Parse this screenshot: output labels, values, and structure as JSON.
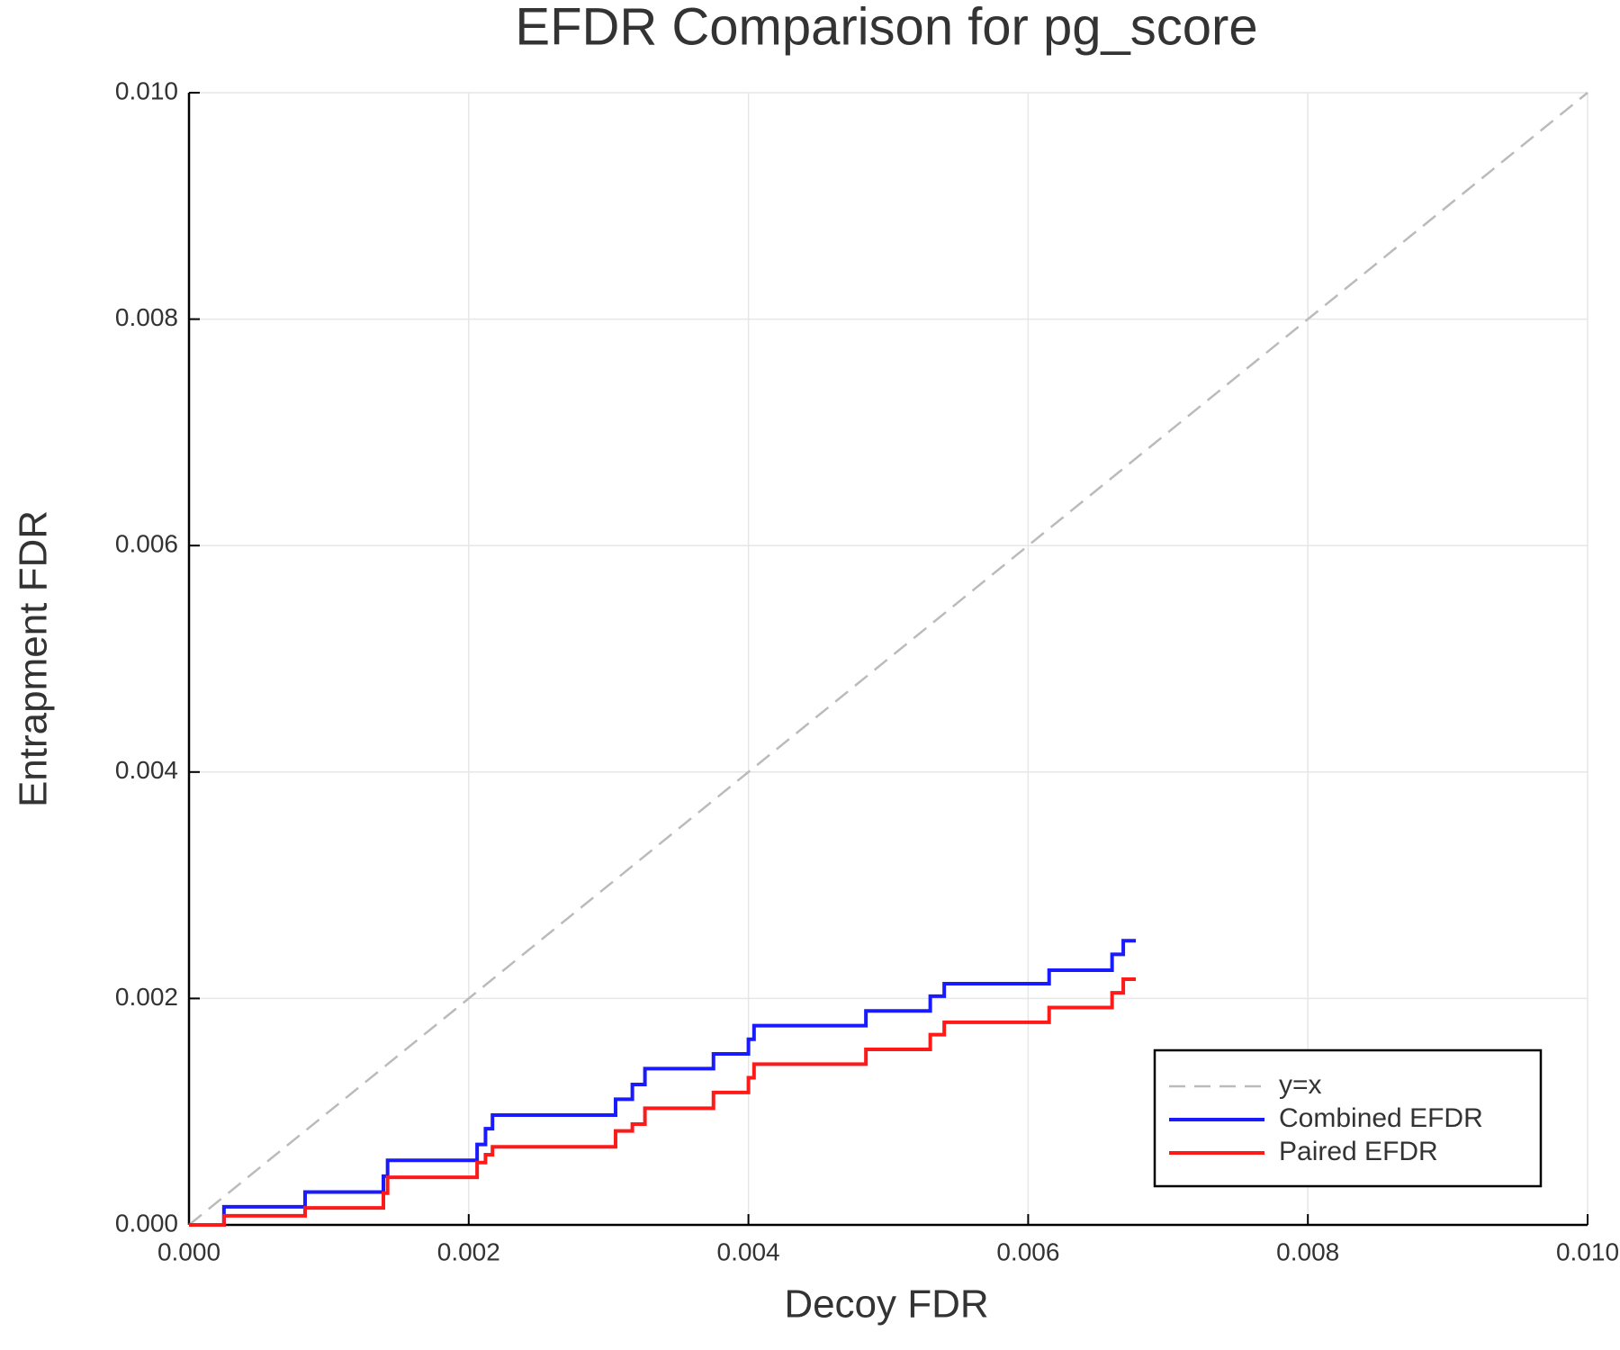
{
  "chart_data": {
    "type": "line",
    "title": "EFDR Comparison for pg_score",
    "x_label": "Decoy FDR",
    "y_label": "Entrapment FDR",
    "xlim": [
      0,
      0.01
    ],
    "ylim": [
      0,
      0.01
    ],
    "xticks": [
      {
        "value": 0,
        "label": "0.000"
      },
      {
        "value": 0.002,
        "label": "0.002"
      },
      {
        "value": 0.004,
        "label": "0.004"
      },
      {
        "value": 0.006,
        "label": "0.006"
      },
      {
        "value": 0.008,
        "label": "0.008"
      },
      {
        "value": 0.01,
        "label": "0.010"
      }
    ],
    "yticks": [
      {
        "value": 0,
        "label": "0.000"
      },
      {
        "value": 0.002,
        "label": "0.002"
      },
      {
        "value": 0.004,
        "label": "0.004"
      },
      {
        "value": 0.006,
        "label": "0.006"
      },
      {
        "value": 0.008,
        "label": "0.008"
      },
      {
        "value": 0.01,
        "label": "0.010"
      }
    ],
    "grid": true,
    "legend": "bottom-right",
    "series": [
      {
        "name": "y=x",
        "color": "#bbbbbb",
        "dash": true,
        "x": [
          0,
          0.01
        ],
        "values": [
          0,
          0.01
        ]
      },
      {
        "name": "Combined EFDR",
        "color": "#1a1aff",
        "dash": false,
        "x": [
          0,
          0.00025,
          0.00025,
          0.00083,
          0.00083,
          0.00139,
          0.00139,
          0.00142,
          0.00142,
          0.00206,
          0.00206,
          0.00212,
          0.00212,
          0.00217,
          0.00217,
          0.00305,
          0.00305,
          0.00317,
          0.00317,
          0.00326,
          0.00326,
          0.00375,
          0.00375,
          0.004,
          0.004,
          0.00404,
          0.00404,
          0.00484,
          0.00484,
          0.0053,
          0.0053,
          0.0054,
          0.0054,
          0.00615,
          0.00615,
          0.0066,
          0.0066,
          0.00668,
          0.00668,
          0.00677
        ],
        "values": [
          0,
          0,
          0.00016,
          0.00016,
          0.00029,
          0.00029,
          0.00043,
          0.00043,
          0.00057,
          0.00057,
          0.00071,
          0.00071,
          0.00085,
          0.00085,
          0.00097,
          0.00097,
          0.00111,
          0.00111,
          0.00124,
          0.00124,
          0.00138,
          0.00138,
          0.00151,
          0.00151,
          0.00164,
          0.00164,
          0.00176,
          0.00176,
          0.00189,
          0.00189,
          0.00202,
          0.00202,
          0.00213,
          0.00213,
          0.00225,
          0.00225,
          0.00239,
          0.00239,
          0.00251,
          0.00251
        ]
      },
      {
        "name": "Paired EFDR",
        "color": "#ff1a1a",
        "dash": false,
        "x": [
          0,
          0.00025,
          0.00025,
          0.00083,
          0.00083,
          0.00139,
          0.00139,
          0.00142,
          0.00142,
          0.00206,
          0.00206,
          0.00212,
          0.00212,
          0.00217,
          0.00217,
          0.00305,
          0.00305,
          0.00317,
          0.00317,
          0.00326,
          0.00326,
          0.00375,
          0.00375,
          0.004,
          0.004,
          0.00404,
          0.00404,
          0.00484,
          0.00484,
          0.0053,
          0.0053,
          0.0054,
          0.0054,
          0.00615,
          0.00615,
          0.0066,
          0.0066,
          0.00668,
          0.00668,
          0.00677
        ],
        "values": [
          0,
          0,
          8e-05,
          8e-05,
          0.00015,
          0.00015,
          0.00028,
          0.00028,
          0.00042,
          0.00042,
          0.00055,
          0.00055,
          0.00062,
          0.00062,
          0.00069,
          0.00069,
          0.00083,
          0.00083,
          0.00089,
          0.00089,
          0.00103,
          0.00103,
          0.00117,
          0.00117,
          0.0013,
          0.0013,
          0.00142,
          0.00142,
          0.00155,
          0.00155,
          0.00168,
          0.00168,
          0.00179,
          0.00179,
          0.00192,
          0.00192,
          0.00205,
          0.00205,
          0.00217,
          0.00217
        ]
      }
    ]
  }
}
